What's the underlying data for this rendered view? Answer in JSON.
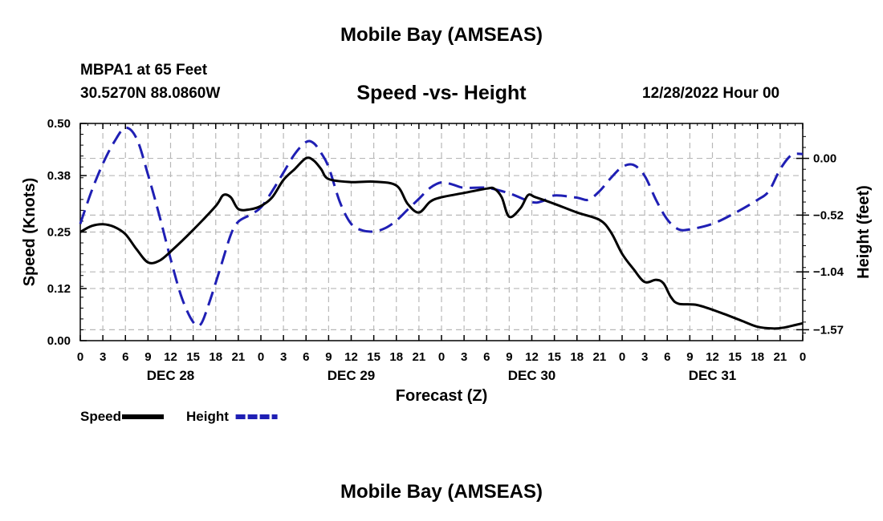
{
  "header": {
    "title": "Mobile Bay (AMSEAS)",
    "station": "MBPA1 at 65 Feet",
    "coordinates": "30.5270N  88.0860W",
    "datetime": "12/28/2022 Hour 00",
    "footer_title": "Mobile Bay (AMSEAS)"
  },
  "chart_data": {
    "type": "line",
    "title": "Speed -vs- Height",
    "xlabel": "Forecast (Z)",
    "ylabel_left": "Speed (Knots)",
    "ylabel_right": "Height (feet)",
    "x_unit": "forecast hour",
    "xlim": [
      0,
      96
    ],
    "x_tick_labels": [
      "0",
      "3",
      "6",
      "9",
      "12",
      "15",
      "18",
      "21",
      "0",
      "3",
      "6",
      "9",
      "12",
      "15",
      "18",
      "21",
      "0",
      "3",
      "6",
      "9",
      "12",
      "15",
      "18",
      "21",
      "0",
      "3",
      "6",
      "9",
      "12",
      "15",
      "18",
      "21",
      "0"
    ],
    "day_labels": [
      {
        "label": "DEC 28",
        "hour": 12
      },
      {
        "label": "DEC 29",
        "hour": 36
      },
      {
        "label": "DEC 30",
        "hour": 60
      },
      {
        "label": "DEC 31",
        "hour": 84
      }
    ],
    "y_left": {
      "lim": [
        0.0,
        0.5
      ],
      "ticks": [
        0.0,
        0.12,
        0.25,
        0.38,
        0.5
      ],
      "tick_labels": [
        "0.00",
        "0.12",
        "0.25",
        "0.38",
        "0.50"
      ]
    },
    "y_right": {
      "lim": [
        -1.67,
        0.32
      ],
      "ticks": [
        0.0,
        -0.52,
        -1.04,
        -1.57
      ],
      "tick_labels": [
        "0.00",
        "−0.52",
        "−1.04",
        "−1.57"
      ]
    },
    "grid": true,
    "legend_placement": "bottom-left",
    "series": [
      {
        "name": "Speed",
        "axis": "left",
        "color": "#000000",
        "style": "solid",
        "points": [
          [
            0,
            0.25
          ],
          [
            1.5,
            0.264
          ],
          [
            3,
            0.268
          ],
          [
            4.5,
            0.262
          ],
          [
            6,
            0.245
          ],
          [
            7.5,
            0.21
          ],
          [
            9,
            0.18
          ],
          [
            10.5,
            0.184
          ],
          [
            12,
            0.205
          ],
          [
            15,
            0.255
          ],
          [
            18,
            0.31
          ],
          [
            19,
            0.335
          ],
          [
            20,
            0.33
          ],
          [
            21,
            0.303
          ],
          [
            22.5,
            0.302
          ],
          [
            24,
            0.31
          ],
          [
            25.5,
            0.33
          ],
          [
            27,
            0.37
          ],
          [
            28.5,
            0.395
          ],
          [
            30,
            0.42
          ],
          [
            31,
            0.415
          ],
          [
            32,
            0.395
          ],
          [
            33,
            0.372
          ],
          [
            36,
            0.365
          ],
          [
            39,
            0.366
          ],
          [
            42,
            0.357
          ],
          [
            43.5,
            0.315
          ],
          [
            45,
            0.295
          ],
          [
            46.5,
            0.32
          ],
          [
            48,
            0.33
          ],
          [
            51,
            0.34
          ],
          [
            54,
            0.35
          ],
          [
            55,
            0.35
          ],
          [
            56,
            0.33
          ],
          [
            57,
            0.285
          ],
          [
            58.5,
            0.305
          ],
          [
            59.5,
            0.335
          ],
          [
            60.5,
            0.33
          ],
          [
            63,
            0.315
          ],
          [
            66,
            0.295
          ],
          [
            69,
            0.278
          ],
          [
            70.5,
            0.25
          ],
          [
            72,
            0.2
          ],
          [
            73.5,
            0.165
          ],
          [
            75,
            0.135
          ],
          [
            76.5,
            0.14
          ],
          [
            77.5,
            0.132
          ],
          [
            78.5,
            0.1
          ],
          [
            79.5,
            0.085
          ],
          [
            82,
            0.082
          ],
          [
            85,
            0.065
          ],
          [
            88,
            0.045
          ],
          [
            90,
            0.032
          ],
          [
            92,
            0.028
          ],
          [
            93.5,
            0.03
          ],
          [
            95,
            0.036
          ],
          [
            96,
            0.04
          ]
        ]
      },
      {
        "name": "Height",
        "axis": "right",
        "color": "#1f1fb4",
        "style": "dashed",
        "points": [
          [
            0,
            -0.6
          ],
          [
            1.5,
            -0.3
          ],
          [
            3,
            -0.05
          ],
          [
            4.5,
            0.15
          ],
          [
            6,
            0.28
          ],
          [
            7.5,
            0.18
          ],
          [
            9,
            -0.15
          ],
          [
            10.5,
            -0.52
          ],
          [
            12,
            -0.92
          ],
          [
            13.5,
            -1.28
          ],
          [
            15,
            -1.5
          ],
          [
            16,
            -1.52
          ],
          [
            17,
            -1.35
          ],
          [
            18.5,
            -1.03
          ],
          [
            20,
            -0.7
          ],
          [
            21,
            -0.58
          ],
          [
            22.5,
            -0.52
          ],
          [
            24,
            -0.45
          ],
          [
            25.5,
            -0.3
          ],
          [
            27,
            -0.13
          ],
          [
            28.5,
            0.04
          ],
          [
            30,
            0.15
          ],
          [
            31,
            0.14
          ],
          [
            32,
            0.05
          ],
          [
            33,
            -0.08
          ],
          [
            34.5,
            -0.4
          ],
          [
            36,
            -0.6
          ],
          [
            37.5,
            -0.66
          ],
          [
            39,
            -0.67
          ],
          [
            40.5,
            -0.64
          ],
          [
            42,
            -0.57
          ],
          [
            43.5,
            -0.47
          ],
          [
            45,
            -0.37
          ],
          [
            46.5,
            -0.27
          ],
          [
            48,
            -0.22
          ],
          [
            49.5,
            -0.24
          ],
          [
            51,
            -0.27
          ],
          [
            54,
            -0.27
          ],
          [
            57,
            -0.32
          ],
          [
            60,
            -0.4
          ],
          [
            61.5,
            -0.39
          ],
          [
            63,
            -0.34
          ],
          [
            66,
            -0.36
          ],
          [
            67.5,
            -0.38
          ],
          [
            69,
            -0.3
          ],
          [
            70.5,
            -0.18
          ],
          [
            72,
            -0.08
          ],
          [
            73.5,
            -0.06
          ],
          [
            75,
            -0.16
          ],
          [
            76.5,
            -0.38
          ],
          [
            78,
            -0.56
          ],
          [
            79.5,
            -0.65
          ],
          [
            81,
            -0.65
          ],
          [
            84,
            -0.6
          ],
          [
            87,
            -0.5
          ],
          [
            90,
            -0.38
          ],
          [
            91.5,
            -0.3
          ],
          [
            93,
            -0.1
          ],
          [
            94.5,
            0.03
          ],
          [
            96,
            0.04
          ]
        ]
      }
    ]
  }
}
